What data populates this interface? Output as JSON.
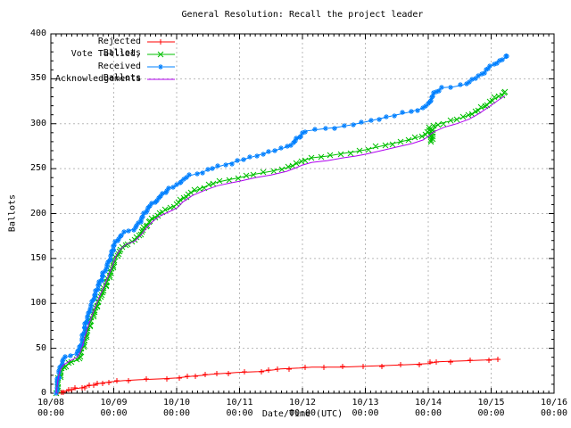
{
  "title": "General Resolution: Recall the project leader",
  "chart_data": {
    "type": "line",
    "title": "General Resolution: Recall the project leader",
    "xlabel": "Date/Time (UTC)",
    "ylabel": "Ballots",
    "ylim": [
      0,
      400
    ],
    "y_tick_step": 50,
    "y_ticks": [
      "0",
      "50",
      "100",
      "150",
      "200",
      "250",
      "300",
      "350",
      "400"
    ],
    "x_ticks": [
      {
        "date": "10/08",
        "time": "00:00"
      },
      {
        "date": "10/09",
        "time": "00:00"
      },
      {
        "date": "10/10",
        "time": "00:00"
      },
      {
        "date": "10/11",
        "time": "00:00"
      },
      {
        "date": "10/12",
        "time": "00:00"
      },
      {
        "date": "10/13",
        "time": "00:00"
      },
      {
        "date": "10/14",
        "time": "00:00"
      },
      {
        "date": "10/15",
        "time": "00:00"
      },
      {
        "date": "10/16",
        "time": "00:00"
      }
    ],
    "x_days_span": 8,
    "grid": "dashed",
    "legend_position": "top-left",
    "series": [
      {
        "label": "Rejected Ballots",
        "color": "#ff0000",
        "marker": "plus",
        "marker_value_step": 1,
        "marker_time_step": 0.3,
        "points": [
          [
            0.12,
            0
          ],
          [
            0.18,
            2
          ],
          [
            0.28,
            3
          ],
          [
            0.38,
            5
          ],
          [
            0.48,
            6
          ],
          [
            0.58,
            8
          ],
          [
            0.68,
            9
          ],
          [
            0.78,
            11
          ],
          [
            0.88,
            12
          ],
          [
            1.0,
            13
          ],
          [
            1.15,
            14
          ],
          [
            1.4,
            15
          ],
          [
            1.75,
            16
          ],
          [
            2.0,
            17
          ],
          [
            2.12,
            18
          ],
          [
            2.25,
            19
          ],
          [
            2.42,
            20
          ],
          [
            2.55,
            21
          ],
          [
            2.75,
            22
          ],
          [
            2.95,
            23
          ],
          [
            3.3,
            24
          ],
          [
            3.55,
            26
          ],
          [
            3.65,
            27
          ],
          [
            3.95,
            28
          ],
          [
            4.15,
            29
          ],
          [
            4.6,
            29
          ],
          [
            5.0,
            30
          ],
          [
            5.4,
            31
          ],
          [
            5.75,
            32
          ],
          [
            6.0,
            33
          ],
          [
            6.08,
            34
          ],
          [
            6.15,
            35
          ],
          [
            6.55,
            36
          ],
          [
            6.9,
            37
          ],
          [
            7.1,
            38
          ]
        ]
      },
      {
        "label": "Vote Tallied,",
        "color": "#00c000",
        "marker": "cross",
        "marker_value_step": 2,
        "marker_time_step": 0.15,
        "points": [
          [
            0.09,
            0
          ],
          [
            0.11,
            8
          ],
          [
            0.13,
            16
          ],
          [
            0.16,
            24
          ],
          [
            0.2,
            29
          ],
          [
            0.3,
            34
          ],
          [
            0.42,
            37
          ],
          [
            0.47,
            43
          ],
          [
            0.52,
            54
          ],
          [
            0.57,
            67
          ],
          [
            0.63,
            79
          ],
          [
            0.7,
            92
          ],
          [
            0.77,
            104
          ],
          [
            0.84,
            115
          ],
          [
            0.91,
            127
          ],
          [
            0.98,
            140
          ],
          [
            1.03,
            151
          ],
          [
            1.1,
            159
          ],
          [
            1.2,
            166
          ],
          [
            1.33,
            170
          ],
          [
            1.42,
            177
          ],
          [
            1.52,
            187
          ],
          [
            1.63,
            195
          ],
          [
            1.75,
            201
          ],
          [
            1.88,
            206
          ],
          [
            2.0,
            210
          ],
          [
            2.1,
            217
          ],
          [
            2.25,
            224
          ],
          [
            2.45,
            230
          ],
          [
            2.65,
            235
          ],
          [
            2.85,
            238
          ],
          [
            3.0,
            240
          ],
          [
            3.25,
            244
          ],
          [
            3.5,
            247
          ],
          [
            3.75,
            251
          ],
          [
            3.9,
            255
          ],
          [
            4.0,
            259
          ],
          [
            4.15,
            262
          ],
          [
            4.4,
            264
          ],
          [
            4.65,
            267
          ],
          [
            4.85,
            269
          ],
          [
            5.0,
            271
          ],
          [
            5.25,
            275
          ],
          [
            5.5,
            279
          ],
          [
            5.75,
            283
          ],
          [
            5.92,
            287
          ],
          [
            6.0,
            291
          ],
          [
            6.03,
            295
          ],
          [
            6.05,
            279
          ],
          [
            6.09,
            297
          ],
          [
            6.18,
            300
          ],
          [
            6.35,
            303
          ],
          [
            6.55,
            307
          ],
          [
            6.75,
            313
          ],
          [
            6.9,
            320
          ],
          [
            7.0,
            325
          ],
          [
            7.1,
            330
          ],
          [
            7.18,
            333
          ],
          [
            7.22,
            335
          ]
        ]
      },
      {
        "label": "Received Ballots",
        "color": "#0080ff",
        "marker": "star",
        "marker_value_step": 2,
        "marker_time_step": 0.15,
        "points": [
          [
            0.08,
            0
          ],
          [
            0.09,
            4
          ],
          [
            0.11,
            12
          ],
          [
            0.13,
            22
          ],
          [
            0.15,
            29
          ],
          [
            0.18,
            35
          ],
          [
            0.22,
            39
          ],
          [
            0.3,
            42
          ],
          [
            0.4,
            44
          ],
          [
            0.45,
            48
          ],
          [
            0.49,
            56
          ],
          [
            0.53,
            70
          ],
          [
            0.58,
            84
          ],
          [
            0.63,
            95
          ],
          [
            0.68,
            106
          ],
          [
            0.73,
            115
          ],
          [
            0.79,
            125
          ],
          [
            0.85,
            135
          ],
          [
            0.91,
            144
          ],
          [
            0.96,
            154
          ],
          [
            1.0,
            164
          ],
          [
            1.05,
            170
          ],
          [
            1.12,
            176
          ],
          [
            1.2,
            180
          ],
          [
            1.33,
            183
          ],
          [
            1.41,
            190
          ],
          [
            1.47,
            198
          ],
          [
            1.55,
            207
          ],
          [
            1.65,
            213
          ],
          [
            1.75,
            219
          ],
          [
            1.87,
            228
          ],
          [
            2.0,
            231
          ],
          [
            2.08,
            237
          ],
          [
            2.2,
            242
          ],
          [
            2.4,
            246
          ],
          [
            2.6,
            251
          ],
          [
            2.8,
            255
          ],
          [
            3.0,
            259
          ],
          [
            3.2,
            263
          ],
          [
            3.45,
            268
          ],
          [
            3.7,
            273
          ],
          [
            3.85,
            278
          ],
          [
            3.93,
            284
          ],
          [
            4.0,
            289
          ],
          [
            4.07,
            292
          ],
          [
            4.3,
            294
          ],
          [
            4.55,
            296
          ],
          [
            4.8,
            299
          ],
          [
            5.0,
            302
          ],
          [
            5.25,
            306
          ],
          [
            5.5,
            310
          ],
          [
            5.7,
            313
          ],
          [
            5.9,
            317
          ],
          [
            6.0,
            321
          ],
          [
            6.05,
            328
          ],
          [
            6.12,
            336
          ],
          [
            6.22,
            340
          ],
          [
            6.4,
            341
          ],
          [
            6.55,
            343
          ],
          [
            6.65,
            347
          ],
          [
            6.78,
            352
          ],
          [
            6.9,
            358
          ],
          [
            7.0,
            364
          ],
          [
            7.08,
            368
          ],
          [
            7.15,
            371
          ],
          [
            7.22,
            373
          ],
          [
            7.25,
            375
          ]
        ]
      },
      {
        "label": "Acknowledgements",
        "color": "#b000f0",
        "marker": "none",
        "marker_value_step": 0,
        "marker_time_step": 0,
        "points": [
          [
            0.085,
            0
          ],
          [
            0.1,
            8
          ],
          [
            0.12,
            18
          ],
          [
            0.15,
            26
          ],
          [
            0.19,
            31
          ],
          [
            0.3,
            36
          ],
          [
            0.42,
            40
          ],
          [
            0.47,
            46
          ],
          [
            0.52,
            57
          ],
          [
            0.57,
            70
          ],
          [
            0.63,
            82
          ],
          [
            0.7,
            95
          ],
          [
            0.77,
            107
          ],
          [
            0.84,
            118
          ],
          [
            0.91,
            130
          ],
          [
            0.98,
            142
          ],
          [
            1.03,
            152
          ],
          [
            1.1,
            160
          ],
          [
            1.2,
            166
          ],
          [
            1.33,
            169
          ],
          [
            1.42,
            175
          ],
          [
            1.52,
            184
          ],
          [
            1.63,
            192
          ],
          [
            1.75,
            198
          ],
          [
            1.88,
            202
          ],
          [
            2.0,
            206
          ],
          [
            2.1,
            213
          ],
          [
            2.25,
            220
          ],
          [
            2.45,
            226
          ],
          [
            2.65,
            231
          ],
          [
            2.85,
            234
          ],
          [
            3.0,
            236
          ],
          [
            3.25,
            240
          ],
          [
            3.5,
            243
          ],
          [
            3.75,
            247
          ],
          [
            3.9,
            251
          ],
          [
            4.0,
            254
          ],
          [
            4.15,
            257
          ],
          [
            4.4,
            259
          ],
          [
            4.65,
            262
          ],
          [
            4.85,
            264
          ],
          [
            5.0,
            266
          ],
          [
            5.25,
            270
          ],
          [
            5.5,
            274
          ],
          [
            5.75,
            278
          ],
          [
            5.92,
            282
          ],
          [
            6.0,
            286
          ],
          [
            6.05,
            289
          ],
          [
            6.12,
            292
          ],
          [
            6.25,
            296
          ],
          [
            6.45,
            300
          ],
          [
            6.65,
            305
          ],
          [
            6.8,
            311
          ],
          [
            6.95,
            318
          ],
          [
            7.05,
            323
          ],
          [
            7.15,
            328
          ],
          [
            7.22,
            331
          ]
        ]
      }
    ]
  }
}
